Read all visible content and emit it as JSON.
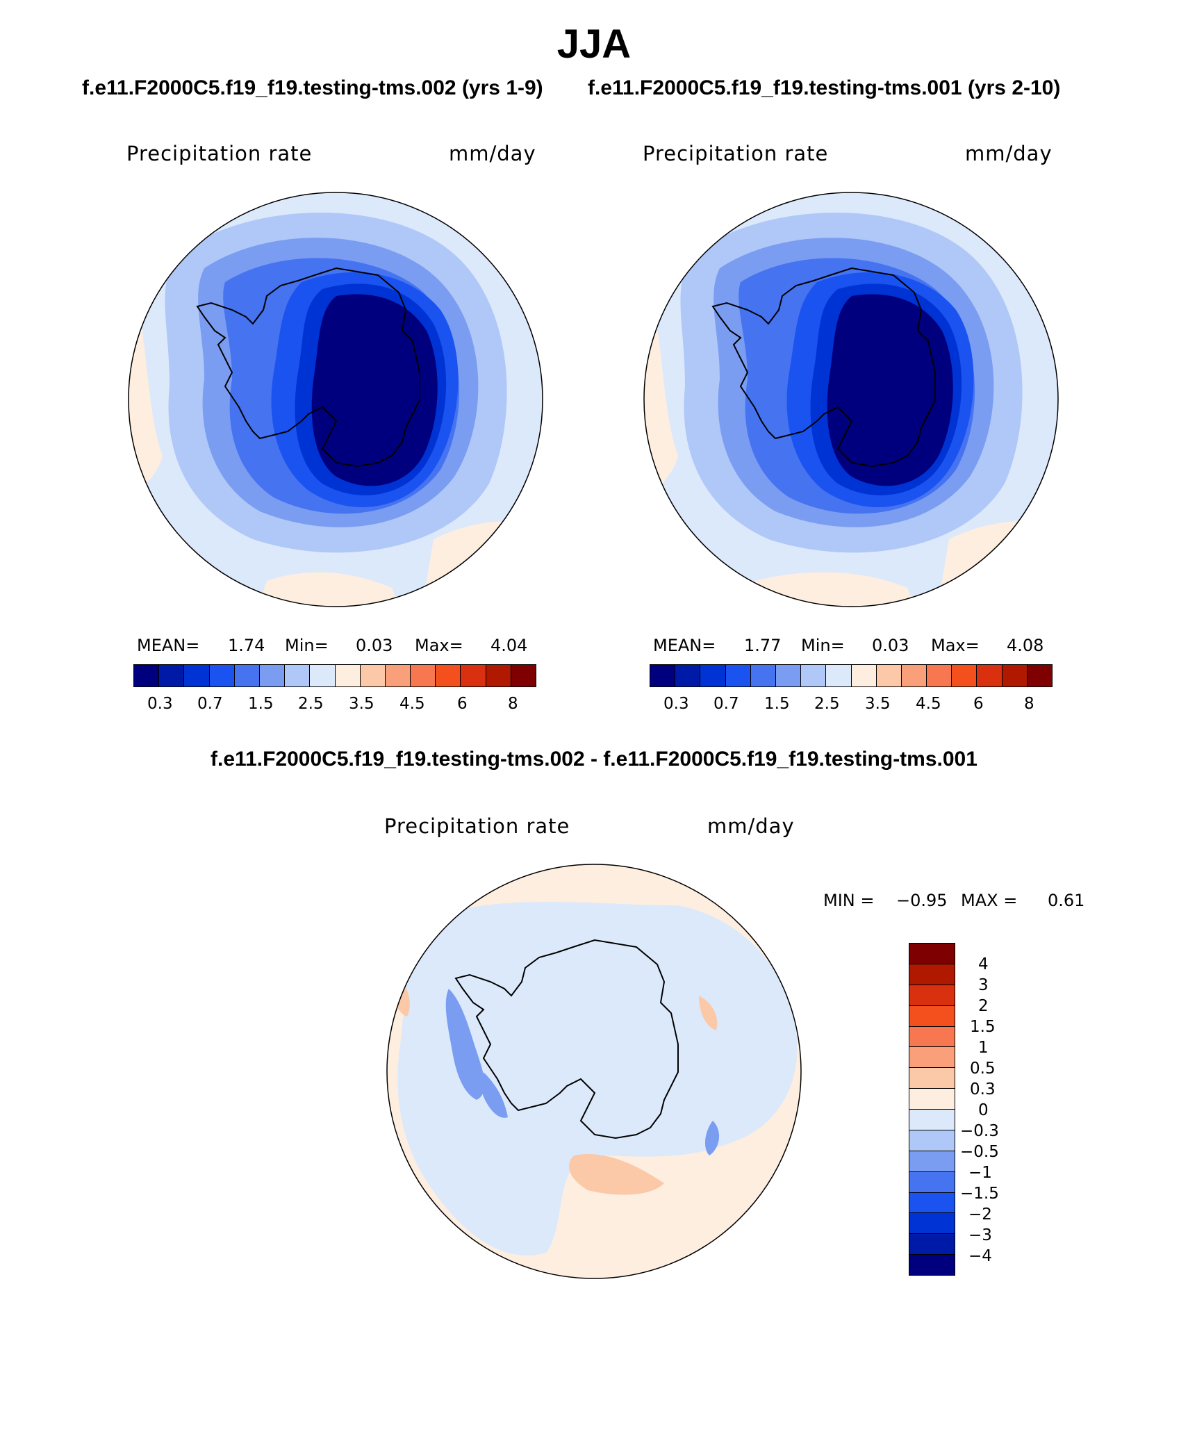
{
  "title": "JJA",
  "panels": [
    {
      "case": "f.e11.F2000C5.f19_f19.testing-tms.002 (yrs 1-9)",
      "variable": "Precipitation rate",
      "units": "mm/day",
      "mean_label": "MEAN=",
      "mean": "1.74",
      "min_label": "Min=",
      "min": "0.03",
      "max_label": "Max=",
      "max": "4.04"
    },
    {
      "case": "f.e11.F2000C5.f19_f19.testing-tms.001 (yrs 2-10)",
      "variable": "Precipitation rate",
      "units": "mm/day",
      "mean_label": "MEAN=",
      "mean": "1.77",
      "min_label": "Min=",
      "min": "0.03",
      "max_label": "Max=",
      "max": "4.08"
    }
  ],
  "abs_colorbar": {
    "colors": [
      "#00007f",
      "#001aa8",
      "#0033d4",
      "#1a53f0",
      "#4673f0",
      "#7a9df2",
      "#b0c8f8",
      "#dce9fb",
      "#fdeee0",
      "#fbc9a8",
      "#f9a07a",
      "#f77850",
      "#f4501e",
      "#d93010",
      "#b01800",
      "#7f0000"
    ],
    "tick_labels": [
      "0.3",
      "0.7",
      "1.5",
      "2.5",
      "3.5",
      "4.5",
      "6",
      "8"
    ]
  },
  "diff": {
    "title": "f.e11.F2000C5.f19_f19.testing-tms.002 - f.e11.F2000C5.f19_f19.testing-tms.001",
    "variable": "Precipitation rate",
    "units": "mm/day",
    "min_label": "MIN =",
    "min": "−0.95",
    "max_label": "MAX =",
    "max": "0.61",
    "colorbar": {
      "colors_top_to_bottom": [
        "#7f0000",
        "#b01800",
        "#d93010",
        "#f4501e",
        "#f77850",
        "#f9a07a",
        "#fbc9a8",
        "#fdeee0",
        "#dce9fb",
        "#b0c8f8",
        "#7a9df2",
        "#4673f0",
        "#1a53f0",
        "#0033d4",
        "#001aa8",
        "#00007f"
      ],
      "tick_labels": [
        "4",
        "3",
        "2",
        "1.5",
        "1",
        "0.5",
        "0.3",
        "0",
        "−0.3",
        "−0.5",
        "−1",
        "−1.5",
        "−2",
        "−3",
        "−4"
      ]
    }
  }
}
